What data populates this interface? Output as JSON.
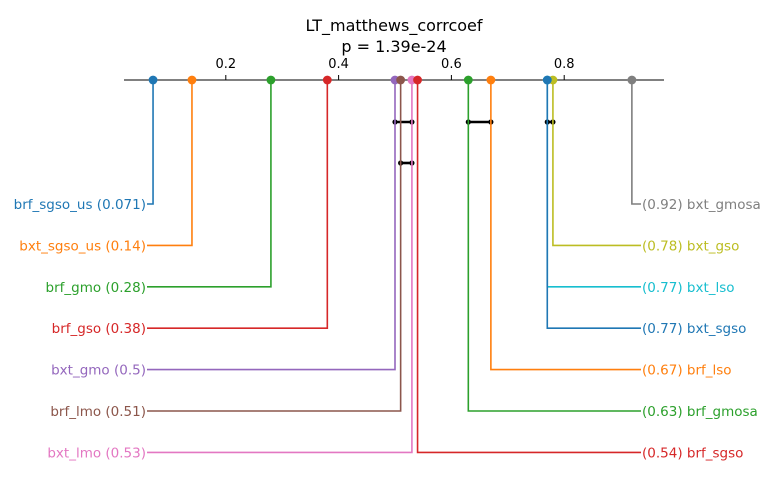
{
  "chart_data": {
    "type": "critical-difference",
    "title": "LT_matthews_corrcoef",
    "subtitle": "p = 1.39e-24",
    "axis": {
      "min": 0.0,
      "max": 1.0,
      "ticks": [
        0.2,
        0.4,
        0.6,
        0.8
      ],
      "tick_labels": [
        "0.2",
        "0.4",
        "0.6",
        "0.8"
      ]
    },
    "left_items": [
      {
        "name": "brf_sgso_us",
        "value": 0.071,
        "text": "brf_sgso_us (0.071)",
        "color": "#1f77b4"
      },
      {
        "name": "bxt_sgso_us",
        "value": 0.14,
        "text": "bxt_sgso_us (0.14)",
        "color": "#ff7f0e"
      },
      {
        "name": "brf_gmo",
        "value": 0.28,
        "text": "brf_gmo (0.28)",
        "color": "#2ca02c"
      },
      {
        "name": "brf_gso",
        "value": 0.38,
        "text": "brf_gso (0.38)",
        "color": "#d62728"
      },
      {
        "name": "bxt_gmo",
        "value": 0.5,
        "text": "bxt_gmo (0.5)",
        "color": "#9467bd"
      },
      {
        "name": "brf_lmo",
        "value": 0.51,
        "text": "brf_lmo (0.51)",
        "color": "#8c564b"
      },
      {
        "name": "bxt_lmo",
        "value": 0.53,
        "text": "bxt_lmo (0.53)",
        "color": "#e377c2"
      }
    ],
    "right_items": [
      {
        "name": "bxt_gmosa",
        "value": 0.92,
        "text": "(0.92) bxt_gmosa",
        "color": "#7f7f7f"
      },
      {
        "name": "bxt_gso",
        "value": 0.78,
        "text": "(0.78) bxt_gso",
        "color": "#bcbd22"
      },
      {
        "name": "bxt_lso",
        "value": 0.77,
        "text": "(0.77) bxt_lso",
        "color": "#17becf"
      },
      {
        "name": "bxt_sgso",
        "value": 0.77,
        "text": "(0.77) bxt_sgso",
        "color": "#1f77b4"
      },
      {
        "name": "brf_lso",
        "value": 0.67,
        "text": "(0.67) brf_lso",
        "color": "#ff7f0e"
      },
      {
        "name": "brf_gmosa",
        "value": 0.63,
        "text": "(0.63) brf_gmosa",
        "color": "#2ca02c"
      },
      {
        "name": "brf_sgso",
        "value": 0.54,
        "text": "(0.54) brf_sgso",
        "color": "#d62728"
      }
    ],
    "cliques": [
      {
        "from": 0.5,
        "to": 0.53
      },
      {
        "from": 0.63,
        "to": 0.67
      },
      {
        "from": 0.77,
        "to": 0.78
      },
      {
        "from": 0.51,
        "to": 0.53
      }
    ]
  }
}
